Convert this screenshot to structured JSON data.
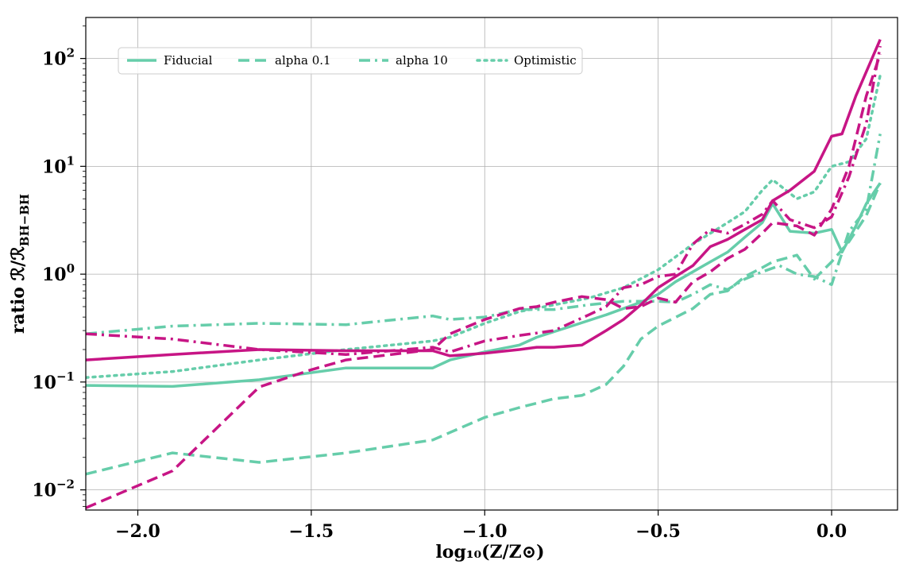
{
  "chart_data": {
    "type": "line",
    "xlabel": "log₁₀(Z/Z⊙)",
    "ylabel": "ratio ℛ/ℛ",
    "ylabel_sub": "BH−BH",
    "xlim": [
      -2.15,
      0.19
    ],
    "ylim": [
      0.0065,
      240
    ],
    "yscale": "log",
    "grid": true,
    "legend_position": "top-left",
    "x_ticks": [
      -2.0,
      -1.5,
      -1.0,
      -0.5,
      0.0
    ],
    "x_tick_labels": [
      "−2.0",
      "−1.5",
      "−1.0",
      "−0.5",
      "0.0"
    ],
    "y_ticks": [
      0.01,
      0.1,
      1,
      10,
      100
    ],
    "y_tick_bases": [
      "10",
      "10",
      "10",
      "10",
      "10"
    ],
    "y_tick_exponents": [
      "−2",
      "−1",
      "0",
      "1",
      "2"
    ],
    "colors": {
      "teal": "#66cdaa",
      "magenta": "#c71585"
    },
    "legend": [
      {
        "label": "Fiducial",
        "dash": "solid"
      },
      {
        "label": "alpha 0.1",
        "dash": "dashed"
      },
      {
        "label": "alpha 10",
        "dash": "dashdot"
      },
      {
        "label": "Optimistic",
        "dash": "dotted"
      }
    ],
    "series": [
      {
        "color": "teal",
        "dash": "solid",
        "x": [
          -2.15,
          -1.9,
          -1.65,
          -1.4,
          -1.15,
          -1.1,
          -1.0,
          -0.9,
          -0.85,
          -0.75,
          -0.65,
          -0.55,
          -0.5,
          -0.45,
          -0.4,
          -0.35,
          -0.3,
          -0.25,
          -0.2,
          -0.17,
          -0.12,
          -0.05,
          0.0,
          0.03,
          0.07,
          0.1,
          0.14
        ],
        "y": [
          0.093,
          0.091,
          0.105,
          0.135,
          0.135,
          0.16,
          0.19,
          0.22,
          0.26,
          0.33,
          0.42,
          0.55,
          0.65,
          0.85,
          1.05,
          1.3,
          1.6,
          2.2,
          3.0,
          4.5,
          2.5,
          2.4,
          2.6,
          1.6,
          2.8,
          4.5,
          7.0
        ]
      },
      {
        "color": "teal",
        "dash": "dashed",
        "x": [
          -2.15,
          -1.9,
          -1.65,
          -1.4,
          -1.15,
          -1.0,
          -0.9,
          -0.8,
          -0.72,
          -0.65,
          -0.6,
          -0.55,
          -0.5,
          -0.4,
          -0.35,
          -0.3,
          -0.25,
          -0.2,
          -0.17,
          -0.1,
          -0.05,
          0.0,
          0.05,
          0.1,
          0.14
        ],
        "y": [
          0.014,
          0.022,
          0.018,
          0.022,
          0.029,
          0.047,
          0.058,
          0.07,
          0.075,
          0.095,
          0.14,
          0.25,
          0.33,
          0.48,
          0.65,
          0.7,
          0.95,
          1.15,
          1.3,
          1.5,
          0.9,
          1.3,
          2.0,
          3.5,
          7.0
        ]
      },
      {
        "color": "teal",
        "dash": "dashdot",
        "x": [
          -2.15,
          -1.9,
          -1.65,
          -1.4,
          -1.15,
          -1.1,
          -1.0,
          -0.9,
          -0.8,
          -0.7,
          -0.6,
          -0.5,
          -0.45,
          -0.4,
          -0.35,
          -0.3,
          -0.25,
          -0.2,
          -0.15,
          -0.1,
          -0.05,
          0.0,
          0.05,
          0.1,
          0.14
        ],
        "y": [
          0.28,
          0.33,
          0.35,
          0.34,
          0.41,
          0.38,
          0.4,
          0.47,
          0.47,
          0.52,
          0.56,
          0.56,
          0.55,
          0.65,
          0.8,
          0.72,
          0.9,
          1.05,
          1.2,
          1.0,
          0.95,
          0.8,
          2.5,
          4.0,
          20
        ]
      },
      {
        "color": "teal",
        "dash": "dotted",
        "x": [
          -2.15,
          -1.9,
          -1.65,
          -1.4,
          -1.15,
          -1.1,
          -1.0,
          -0.9,
          -0.8,
          -0.7,
          -0.6,
          -0.5,
          -0.4,
          -0.3,
          -0.25,
          -0.2,
          -0.17,
          -0.1,
          -0.05,
          0.0,
          0.05,
          0.1,
          0.14
        ],
        "y": [
          0.11,
          0.125,
          0.16,
          0.2,
          0.24,
          0.26,
          0.35,
          0.45,
          0.52,
          0.6,
          0.75,
          1.1,
          1.9,
          3.0,
          3.8,
          6.0,
          7.5,
          5.0,
          5.8,
          10.0,
          11.0,
          18.0,
          70
        ]
      },
      {
        "color": "magenta",
        "dash": "solid",
        "x": [
          -2.15,
          -1.9,
          -1.65,
          -1.4,
          -1.15,
          -1.1,
          -1.0,
          -0.9,
          -0.85,
          -0.8,
          -0.72,
          -0.65,
          -0.6,
          -0.55,
          -0.5,
          -0.45,
          -0.4,
          -0.35,
          -0.3,
          -0.25,
          -0.2,
          -0.17,
          -0.12,
          -0.05,
          0.0,
          0.03,
          0.07,
          0.14
        ],
        "y": [
          0.16,
          0.18,
          0.2,
          0.195,
          0.195,
          0.175,
          0.185,
          0.2,
          0.21,
          0.21,
          0.22,
          0.3,
          0.38,
          0.52,
          0.75,
          0.95,
          1.2,
          1.8,
          2.1,
          2.6,
          3.2,
          4.8,
          6.0,
          9.0,
          19.0,
          20.0,
          45.0,
          150
        ]
      },
      {
        "color": "magenta",
        "dash": "dashed",
        "x": [
          -2.15,
          -1.9,
          -1.65,
          -1.5,
          -1.4,
          -1.15,
          -1.1,
          -1.0,
          -0.9,
          -0.85,
          -0.8,
          -0.72,
          -0.65,
          -0.6,
          -0.55,
          -0.5,
          -0.45,
          -0.4,
          -0.35,
          -0.3,
          -0.25,
          -0.2,
          -0.17,
          -0.1,
          -0.05,
          0.0,
          0.05,
          0.1,
          0.14
        ],
        "y": [
          0.0068,
          0.015,
          0.09,
          0.13,
          0.16,
          0.2,
          0.28,
          0.38,
          0.48,
          0.5,
          0.55,
          0.62,
          0.58,
          0.48,
          0.5,
          0.6,
          0.55,
          0.85,
          1.05,
          1.4,
          1.7,
          2.4,
          3.0,
          2.8,
          2.3,
          4.0,
          10.0,
          45.0,
          110
        ]
      },
      {
        "color": "magenta",
        "dash": "dashdot",
        "x": [
          -2.15,
          -1.9,
          -1.65,
          -1.4,
          -1.15,
          -1.1,
          -1.0,
          -0.9,
          -0.8,
          -0.7,
          -0.65,
          -0.6,
          -0.55,
          -0.5,
          -0.45,
          -0.4,
          -0.35,
          -0.3,
          -0.25,
          -0.2,
          -0.17,
          -0.12,
          -0.05,
          0.0,
          0.05,
          0.1,
          0.14
        ],
        "y": [
          0.28,
          0.25,
          0.2,
          0.18,
          0.21,
          0.19,
          0.24,
          0.27,
          0.3,
          0.42,
          0.5,
          0.75,
          0.8,
          0.95,
          1.0,
          1.9,
          2.6,
          2.4,
          2.9,
          3.6,
          4.8,
          3.2,
          2.7,
          3.4,
          8.0,
          25.0,
          130
        ]
      }
    ]
  }
}
